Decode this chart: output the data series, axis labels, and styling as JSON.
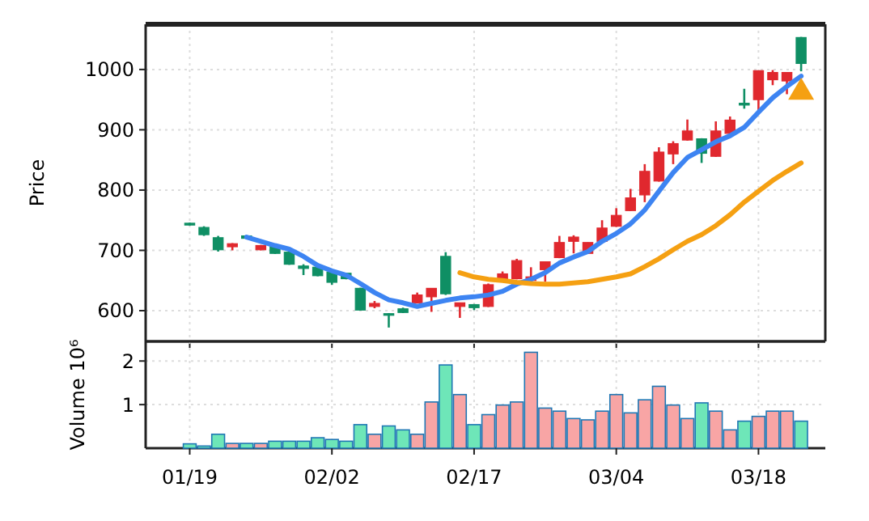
{
  "chart_data": [
    {
      "type": "candlestick",
      "ylabel": "Price",
      "ohlc": [
        [
          745,
          746,
          741,
          742
        ],
        [
          738,
          740,
          724,
          726
        ],
        [
          721,
          724,
          698,
          701
        ],
        [
          706,
          712,
          700,
          711
        ],
        [
          724,
          725,
          719,
          720
        ],
        [
          701,
          709,
          700,
          708
        ],
        [
          707,
          708,
          694,
          695
        ],
        [
          697,
          698,
          676,
          677
        ],
        [
          674,
          677,
          659,
          670
        ],
        [
          672,
          673,
          657,
          658
        ],
        [
          664,
          665,
          643,
          647
        ],
        [
          662,
          663,
          652,
          653
        ],
        [
          637,
          638,
          600,
          601
        ],
        [
          607,
          616,
          604,
          612
        ],
        [
          595,
          596,
          572,
          594
        ],
        [
          603,
          605,
          596,
          597
        ],
        [
          613,
          630,
          612,
          626
        ],
        [
          623,
          637,
          598,
          637
        ],
        [
          690,
          697,
          626,
          628
        ],
        [
          607,
          613,
          588,
          613
        ],
        [
          610,
          611,
          601,
          605
        ],
        [
          607,
          645,
          606,
          643
        ],
        [
          650,
          665,
          648,
          661
        ],
        [
          653,
          686,
          652,
          683
        ],
        [
          650,
          672,
          648,
          656
        ],
        [
          668,
          681,
          648,
          681
        ],
        [
          688,
          724,
          687,
          713
        ],
        [
          715,
          725,
          695,
          722
        ],
        [
          695,
          713,
          694,
          713
        ],
        [
          715,
          750,
          714,
          737
        ],
        [
          740,
          770,
          739,
          758
        ],
        [
          766,
          802,
          765,
          787
        ],
        [
          792,
          843,
          780,
          831
        ],
        [
          815,
          871,
          814,
          863
        ],
        [
          860,
          881,
          843,
          877
        ],
        [
          883,
          917,
          882,
          898
        ],
        [
          885,
          886,
          845,
          861
        ],
        [
          856,
          914,
          855,
          898
        ],
        [
          894,
          922,
          893,
          916
        ],
        [
          944,
          968,
          935,
          941
        ],
        [
          950,
          998,
          929,
          998
        ],
        [
          983,
          999,
          974,
          995
        ],
        [
          981,
          995,
          959,
          995
        ],
        [
          1053,
          1054,
          997,
          1010
        ]
      ],
      "colors": [
        "#0f8f64",
        "#0f8f64",
        "#0f8f64",
        "#e0282e",
        "#0f8f64",
        "#e0282e",
        "#0f8f64",
        "#0f8f64",
        "#0f8f64",
        "#0f8f64",
        "#0f8f64",
        "#0f8f64",
        "#0f8f64",
        "#e0282e",
        "#0f8f64",
        "#0f8f64",
        "#e0282e",
        "#e0282e",
        "#0f8f64",
        "#e0282e",
        "#0f8f64",
        "#e0282e",
        "#e0282e",
        "#e0282e",
        "#e0282e",
        "#e0282e",
        "#e0282e",
        "#e0282e",
        "#e0282e",
        "#e0282e",
        "#e0282e",
        "#e0282e",
        "#e0282e",
        "#e0282e",
        "#e0282e",
        "#e0282e",
        "#0f8f64",
        "#e0282e",
        "#e0282e",
        "#0f8f64",
        "#e0282e",
        "#e0282e",
        "#e0282e",
        "#0f8f64"
      ],
      "series": [
        {
          "type": "line",
          "color": "#3d84f2",
          "values": [
            null,
            null,
            null,
            null,
            722,
            715,
            708,
            702,
            690,
            675,
            666,
            659,
            645,
            630,
            618,
            613,
            607,
            612,
            617,
            621,
            623,
            626,
            632,
            644,
            652,
            663,
            679,
            689,
            698,
            715,
            728,
            744,
            767,
            798,
            829,
            854,
            867,
            880,
            890,
            904,
            929,
            953,
            972,
            989
          ]
        },
        {
          "type": "line",
          "color": "#f5a012",
          "values": [
            null,
            null,
            null,
            null,
            null,
            null,
            null,
            null,
            null,
            null,
            null,
            null,
            null,
            null,
            null,
            null,
            null,
            null,
            null,
            663,
            656,
            652,
            650,
            647,
            645,
            644,
            644,
            646,
            648,
            652,
            656,
            661,
            673,
            686,
            701,
            715,
            726,
            741,
            759,
            780,
            798,
            816,
            831,
            845
          ]
        },
        {
          "type": "scatter",
          "color": "#f5a012",
          "marker": "triangle",
          "values": [
            null,
            null,
            null,
            null,
            null,
            null,
            null,
            null,
            null,
            null,
            null,
            null,
            null,
            null,
            null,
            null,
            null,
            null,
            null,
            null,
            null,
            null,
            null,
            null,
            null,
            null,
            null,
            null,
            null,
            null,
            null,
            null,
            null,
            null,
            null,
            null,
            null,
            null,
            null,
            null,
            null,
            null,
            null,
            965
          ]
        }
      ],
      "ylim": [
        549,
        1075
      ],
      "yticks": [
        600,
        700,
        800,
        900,
        1000
      ],
      "grid": true,
      "tick_labels": "y"
    },
    {
      "type": "bar",
      "ylabel": "Volume  10⁶",
      "categories": [
        "01/19",
        null,
        null,
        null,
        null,
        null,
        null,
        null,
        null,
        null,
        "02/02",
        null,
        null,
        null,
        null,
        null,
        null,
        null,
        null,
        null,
        "02/17",
        null,
        null,
        null,
        null,
        null,
        null,
        null,
        null,
        null,
        "03/04",
        null,
        null,
        null,
        null,
        null,
        null,
        null,
        null,
        null,
        "03/18",
        null,
        null,
        null
      ],
      "values": [
        0.1,
        0.05,
        0.32,
        0.11,
        0.11,
        0.11,
        0.16,
        0.16,
        0.16,
        0.24,
        0.2,
        0.16,
        0.54,
        0.32,
        0.51,
        0.42,
        0.32,
        1.06,
        1.91,
        1.23,
        0.54,
        0.77,
        0.99,
        1.06,
        2.2,
        0.92,
        0.85,
        0.68,
        0.65,
        0.85,
        1.23,
        0.81,
        1.11,
        1.42,
        0.99,
        0.68,
        1.04,
        0.85,
        0.42,
        0.62,
        0.73,
        0.85,
        0.85,
        0.62
      ],
      "colors": [
        "#6ee6b8",
        "#6ee6b8",
        "#6ee6b8",
        "#f8a5a5",
        "#6ee6b8",
        "#f8a5a5",
        "#6ee6b8",
        "#6ee6b8",
        "#6ee6b8",
        "#6ee6b8",
        "#6ee6b8",
        "#6ee6b8",
        "#6ee6b8",
        "#f8a5a5",
        "#6ee6b8",
        "#6ee6b8",
        "#f8a5a5",
        "#f8a5a5",
        "#6ee6b8",
        "#f8a5a5",
        "#6ee6b8",
        "#f8a5a5",
        "#f8a5a5",
        "#f8a5a5",
        "#f8a5a5",
        "#f8a5a5",
        "#f8a5a5",
        "#f8a5a5",
        "#f8a5a5",
        "#f8a5a5",
        "#f8a5a5",
        "#f8a5a5",
        "#f8a5a5",
        "#f8a5a5",
        "#f8a5a5",
        "#f8a5a5",
        "#6ee6b8",
        "#f8a5a5",
        "#f8a5a5",
        "#6ee6b8",
        "#f8a5a5",
        "#f8a5a5",
        "#f8a5a5",
        "#6ee6b8"
      ],
      "ylim": [
        0,
        2.45
      ],
      "yticks": [
        1,
        2
      ],
      "grid": true
    }
  ]
}
